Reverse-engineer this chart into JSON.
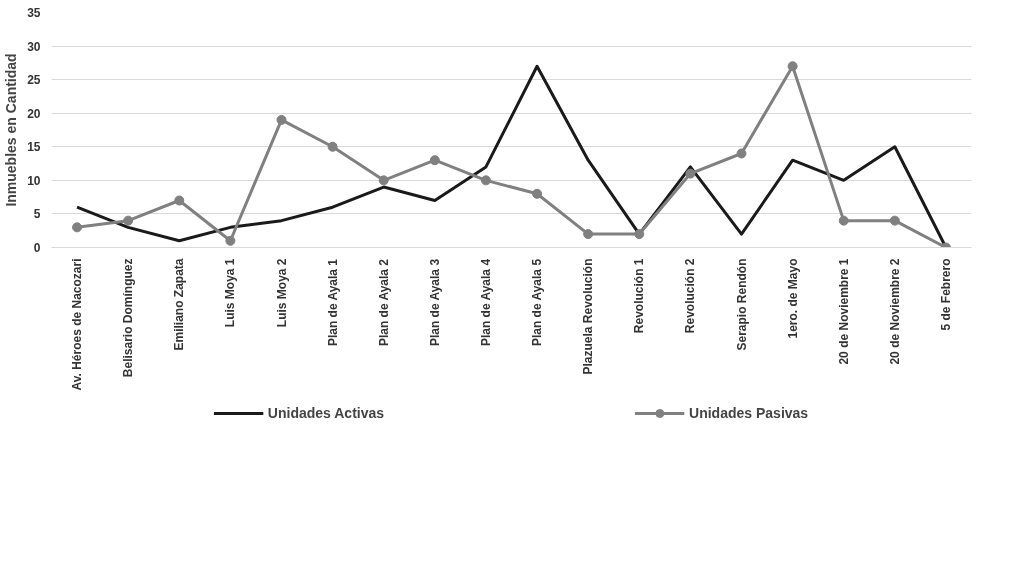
{
  "chart_data": {
    "type": "line",
    "ylabel": "Inmuebles en Cantidad",
    "categories": [
      "Av. Héroes de Nacozari",
      "Belisario Domínguez",
      "Emiliano Zapata",
      "Luis Moya 1",
      "Luis Moya 2",
      "Plan de Ayala 1",
      "Plan de Ayala 2",
      "Plan de Ayala 3",
      "Plan de Ayala 4",
      "Plan de Ayala 5",
      "Plazuela Revolución",
      "Revolución 1",
      "Revolución 2",
      "Serapio Rendón",
      "1ero. de Mayo",
      "20 de Noviembre 1",
      "20 de Noviembre 2",
      "5 de Febrero"
    ],
    "series": [
      {
        "name": "Unidades Activas",
        "color": "#1a1a1a",
        "marker": "none",
        "values": [
          6,
          3,
          1,
          3,
          4,
          6,
          9,
          7,
          12,
          27,
          13,
          2,
          12,
          2,
          13,
          10,
          15,
          0
        ]
      },
      {
        "name": "Unidades Pasivas",
        "color": "#808080",
        "marker": "circle",
        "values": [
          3,
          4,
          7,
          1,
          19,
          15,
          10,
          13,
          10,
          8,
          2,
          2,
          11,
          14,
          27,
          4,
          4,
          0
        ]
      }
    ],
    "ylim": [
      0,
      35
    ],
    "yticks": [
      0,
      5,
      10,
      15,
      20,
      25,
      30,
      35
    ],
    "grid": "y",
    "legend": "bottom"
  }
}
